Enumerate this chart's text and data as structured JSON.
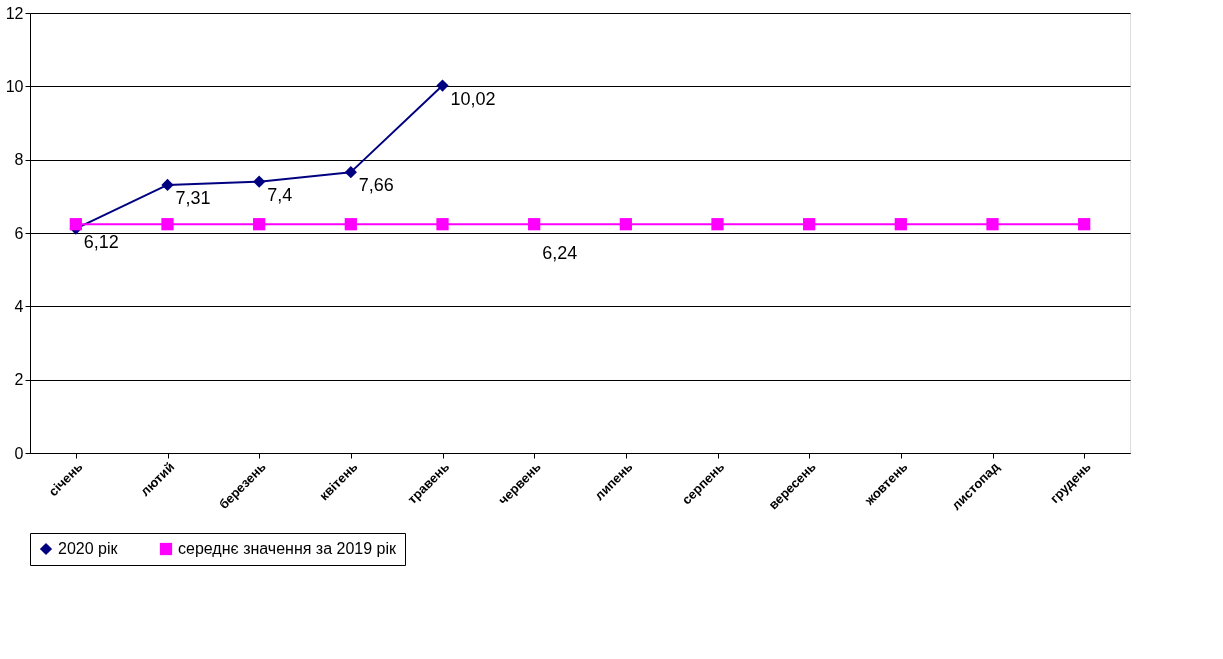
{
  "chart_data": {
    "type": "line",
    "categories": [
      "січень",
      "лютий",
      "березень",
      "квітень",
      "травень",
      "червень",
      "липень",
      "серпень",
      "вересень",
      "жовтень",
      "листопад",
      "грудень"
    ],
    "series": [
      {
        "name": "2020 рік",
        "color": "#000080",
        "marker": "diamond",
        "values": [
          6.12,
          7.31,
          7.4,
          7.66,
          10.02,
          null,
          null,
          null,
          null,
          null,
          null,
          null
        ],
        "value_labels": [
          "6,12",
          "7,31",
          "7,4",
          "7,66",
          "10,02",
          null,
          null,
          null,
          null,
          null,
          null,
          null
        ]
      },
      {
        "name": "середнє значення за 2019 рік",
        "color": "#ff00ff",
        "marker": "square",
        "values": [
          6.24,
          6.24,
          6.24,
          6.24,
          6.24,
          6.24,
          6.24,
          6.24,
          6.24,
          6.24,
          6.24,
          6.24
        ],
        "value_labels": [
          null,
          null,
          null,
          null,
          null,
          "6,24",
          null,
          null,
          null,
          null,
          null,
          null
        ]
      }
    ],
    "ylim": [
      0,
      12
    ],
    "yticks": [
      0,
      2,
      4,
      6,
      8,
      10,
      12
    ],
    "grid": "y",
    "legend": "bottom",
    "line_style": "solid"
  }
}
